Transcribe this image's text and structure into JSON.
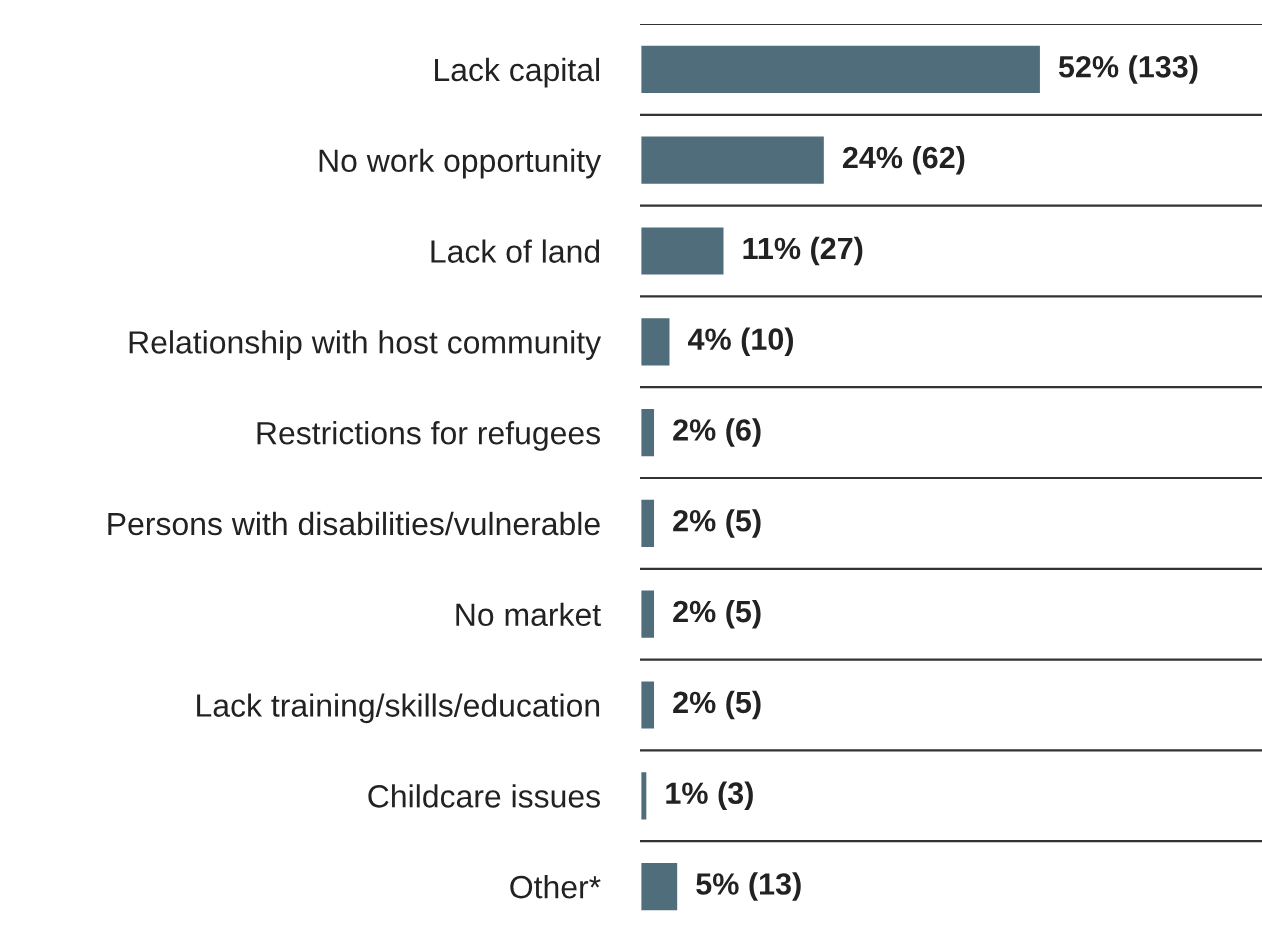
{
  "chart_data": {
    "type": "bar",
    "orientation": "horizontal",
    "categories": [
      "Lack capital",
      "No work opportunity",
      "Lack of land",
      "Relationship with host community",
      "Restrictions for refugees",
      "Persons with disabilities/vulnerable",
      "No market",
      "Lack training/skills/education",
      "Childcare issues",
      "Other*"
    ],
    "values": [
      52,
      24,
      11,
      4,
      2,
      2,
      2,
      2,
      1,
      5
    ],
    "value_labels": [
      "52% (133)",
      "24% (62)",
      "11% (27)",
      "4% (10)",
      "2% (6)",
      "2% (5)",
      "2% (5)",
      "2% (5)",
      "1% (3)",
      "5% (13)"
    ],
    "color": "#4f6d7b",
    "grid": true
  }
}
